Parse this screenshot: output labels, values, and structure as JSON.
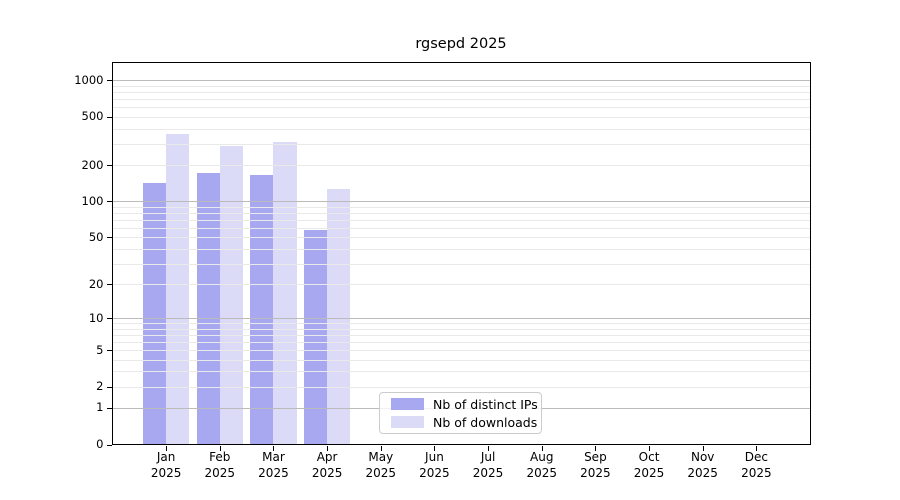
{
  "title": "rgsepd 2025",
  "chart_data": {
    "type": "bar",
    "title": "rgsepd 2025",
    "categories": [
      "Jan 2025",
      "Feb 2025",
      "Mar 2025",
      "Apr 2025",
      "May 2025",
      "Jun 2025",
      "Jul 2025",
      "Aug 2025",
      "Sep 2025",
      "Oct 2025",
      "Nov 2025",
      "Dec 2025"
    ],
    "series": [
      {
        "name": "Nb of distinct IPs",
        "color": "#a8a8f0",
        "values": [
          143,
          171,
          167,
          58,
          0,
          0,
          0,
          0,
          0,
          0,
          0,
          0
        ]
      },
      {
        "name": "Nb of downloads",
        "color": "#dbdbf8",
        "values": [
          363,
          290,
          310,
          126,
          0,
          0,
          0,
          0,
          0,
          0,
          0,
          0
        ]
      }
    ],
    "yscale": "log1p",
    "ytick_values": [
      0,
      1,
      2,
      5,
      10,
      20,
      50,
      100,
      200,
      500,
      1000
    ],
    "ylim": [
      0,
      1421
    ],
    "xlabel": "",
    "ylabel": "",
    "grid": "both",
    "legend_position": "lower center",
    "colors": {
      "major_grid": "#bbbbbb",
      "minor_grid": "#e9e9e9",
      "axis": "#000000",
      "background": "#ffffff"
    }
  }
}
